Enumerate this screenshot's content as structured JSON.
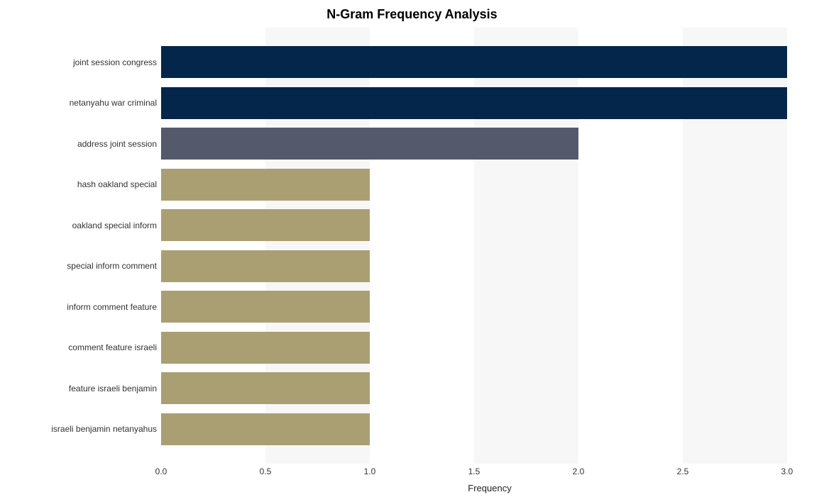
{
  "chart": {
    "type": "bar_horizontal",
    "title": "N-Gram Frequency Analysis",
    "title_fontsize": 18,
    "title_fontweight": "bold",
    "title_color": "#000000",
    "xlabel": "Frequency",
    "label_fontsize": 13,
    "label_color": "#222222",
    "background_color": "#ffffff",
    "plot_background_color": "#f7f7f7",
    "band_color": "#ffffff",
    "x_ticks": [
      "0.0",
      "0.5",
      "1.0",
      "1.5",
      "2.0",
      "2.5",
      "3.0"
    ],
    "x_tick_values": [
      0.0,
      0.5,
      1.0,
      1.5,
      2.0,
      2.5,
      3.0
    ],
    "xlim": [
      0.0,
      3.15
    ],
    "tick_fontsize": 12,
    "tick_color": "#333333",
    "bar_height_ratio": 0.78,
    "categories": [
      "joint session congress",
      "netanyahu war criminal",
      "address joint session",
      "hash oakland special",
      "oakland special inform",
      "special inform comment",
      "inform comment feature",
      "comment feature israeli",
      "feature israeli benjamin",
      "israeli benjamin netanyahus"
    ],
    "values": [
      3.0,
      3.0,
      2.0,
      1.0,
      1.0,
      1.0,
      1.0,
      1.0,
      1.0,
      1.0
    ],
    "bar_colors": [
      "#03264a",
      "#03264a",
      "#545a6c",
      "#aa9f73",
      "#aa9f73",
      "#aa9f73",
      "#aa9f73",
      "#aa9f73",
      "#aa9f73",
      "#aa9f73"
    ]
  }
}
